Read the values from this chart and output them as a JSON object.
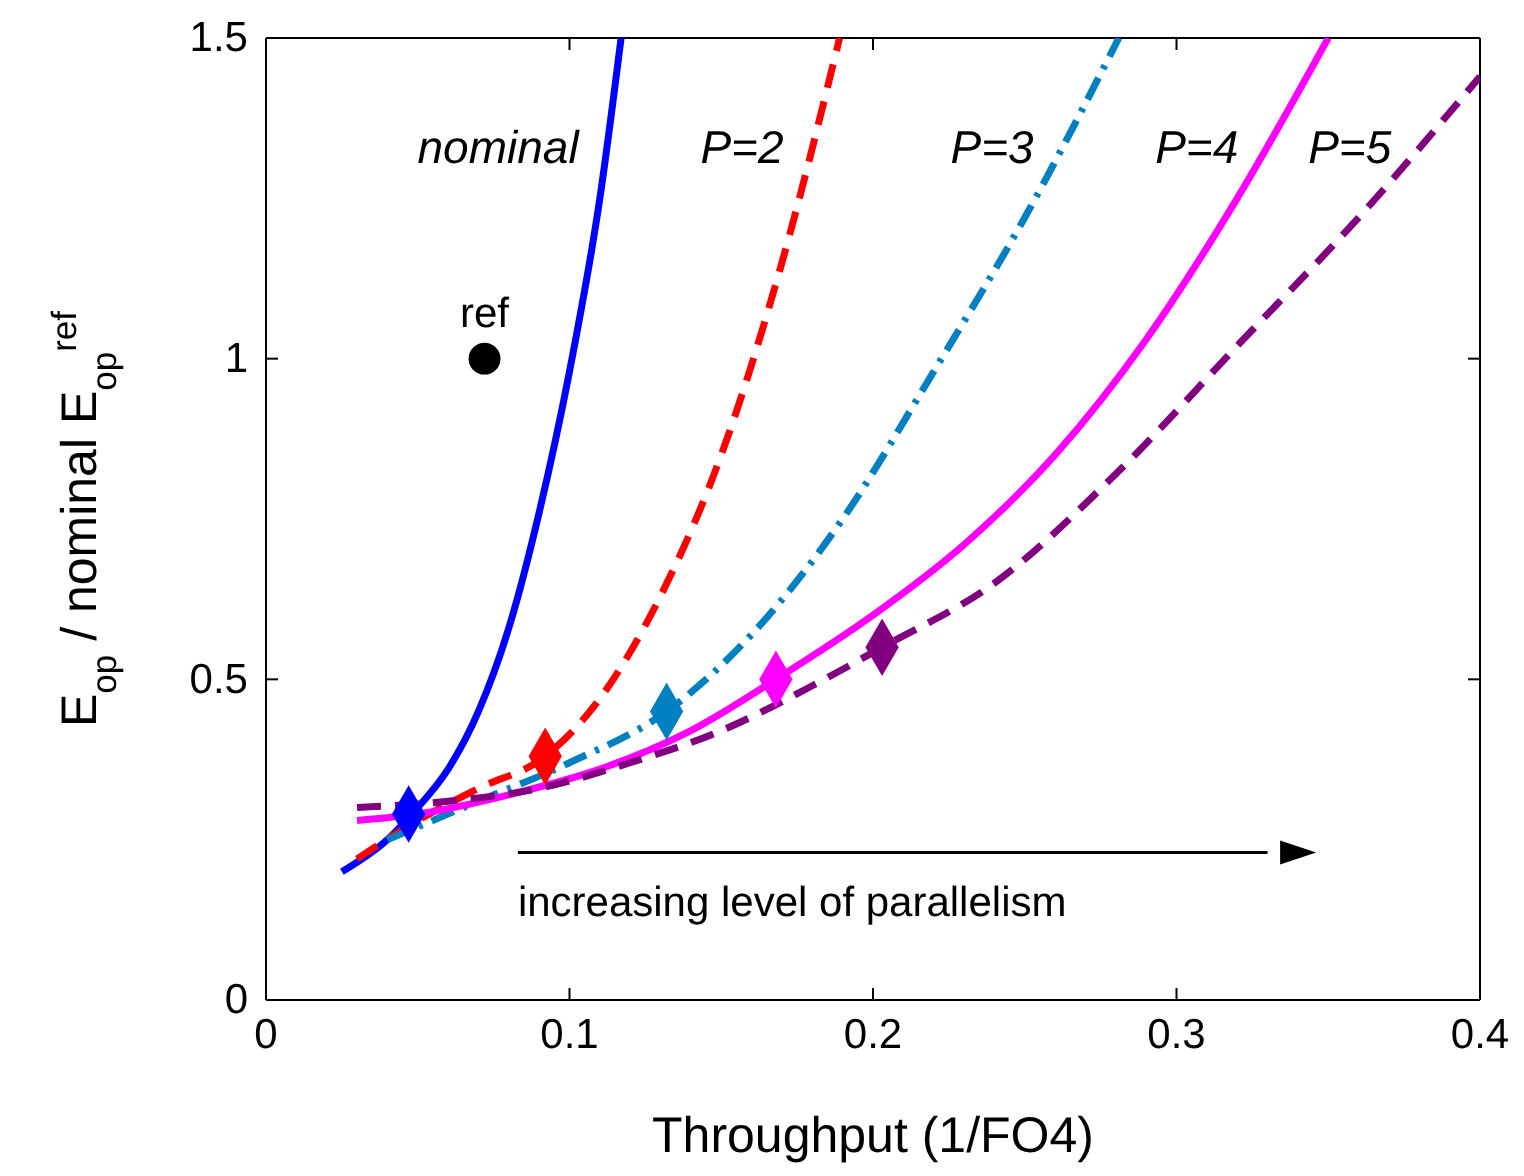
{
  "chart_data": {
    "type": "line",
    "xlabel": "Throughput (1/FO4)",
    "ylabel": "E$_{op}$ / nominal E$_{op}$$^{ref}$",
    "xlim": [
      0,
      0.4
    ],
    "ylim": [
      0,
      1.5
    ],
    "xticks": [
      0,
      0.1,
      0.2,
      0.3,
      0.4
    ],
    "yticks": [
      0,
      0.5,
      1,
      1.5
    ],
    "grid": false,
    "annotations": [
      "increasing level of parallelism"
    ],
    "series": [
      {
        "name": "nominal",
        "type": "line",
        "color": "#0000ff",
        "line_style": "solid",
        "marker": "none",
        "x": [
          0.025,
          0.04,
          0.05,
          0.06,
          0.07,
          0.08,
          0.09,
          0.1,
          0.11,
          0.117
        ],
        "values": [
          0.2,
          0.25,
          0.3,
          0.36,
          0.45,
          0.58,
          0.76,
          0.98,
          1.25,
          1.5
        ]
      },
      {
        "name": "P=2",
        "type": "line",
        "color": "#ff0000",
        "line_style": "dashed",
        "marker": "none",
        "x": [
          0.03,
          0.05,
          0.07,
          0.092,
          0.11,
          0.13,
          0.15,
          0.17,
          0.189
        ],
        "values": [
          0.22,
          0.28,
          0.33,
          0.38,
          0.47,
          0.63,
          0.85,
          1.15,
          1.5
        ]
      },
      {
        "name": "P=3",
        "type": "line",
        "color": "#0080c0",
        "line_style": "dashdot",
        "marker": "none",
        "x": [
          0.04,
          0.07,
          0.1,
          0.132,
          0.16,
          0.19,
          0.22,
          0.25,
          0.281
        ],
        "values": [
          0.25,
          0.31,
          0.37,
          0.45,
          0.57,
          0.75,
          0.98,
          1.22,
          1.5
        ]
      },
      {
        "name": "P=4",
        "type": "line",
        "color": "#ff00ff",
        "line_style": "solid",
        "marker": "none",
        "x": [
          0.03,
          0.05,
          0.08,
          0.11,
          0.14,
          0.168,
          0.2,
          0.23,
          0.26,
          0.29,
          0.32,
          0.35
        ],
        "values": [
          0.28,
          0.29,
          0.32,
          0.36,
          0.42,
          0.5,
          0.6,
          0.71,
          0.85,
          1.03,
          1.25,
          1.5
        ]
      },
      {
        "name": "P=5",
        "type": "line",
        "color": "#800080",
        "line_style": "dashed",
        "marker": "none",
        "x": [
          0.03,
          0.06,
          0.09,
          0.12,
          0.15,
          0.18,
          0.203,
          0.24,
          0.28,
          0.32,
          0.36,
          0.4
        ],
        "values": [
          0.3,
          0.31,
          0.33,
          0.37,
          0.42,
          0.49,
          0.55,
          0.65,
          0.82,
          1.02,
          1.22,
          1.44
        ]
      },
      {
        "type": "scatter",
        "color": "#0000ff",
        "marker": "diamond",
        "x": [
          0.047
        ],
        "values": [
          0.29
        ]
      },
      {
        "type": "scatter",
        "color": "#ff0000",
        "marker": "diamond",
        "x": [
          0.092
        ],
        "values": [
          0.38
        ]
      },
      {
        "type": "scatter",
        "color": "#0080c0",
        "marker": "diamond",
        "x": [
          0.132
        ],
        "values": [
          0.45
        ]
      },
      {
        "type": "scatter",
        "color": "#ff00ff",
        "marker": "diamond",
        "x": [
          0.168
        ],
        "values": [
          0.5
        ]
      },
      {
        "type": "scatter",
        "color": "#800080",
        "marker": "diamond",
        "x": [
          0.203
        ],
        "values": [
          0.55
        ]
      },
      {
        "name": "ref",
        "type": "scatter",
        "color": "#000000",
        "marker": "circle",
        "x": [
          0.072
        ],
        "values": [
          1.0
        ]
      }
    ]
  }
}
